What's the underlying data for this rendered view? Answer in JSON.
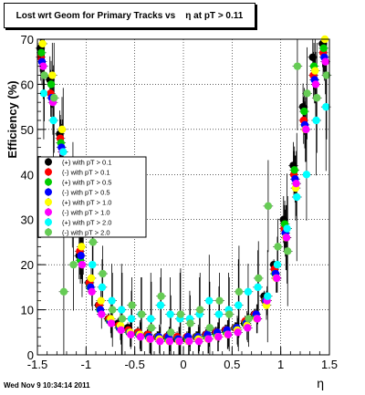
{
  "title": "Lost wrt Geom for Primary Tracks vs    η at pT > 0.11",
  "footer": "Wed Nov  9 10:34:14 2011",
  "colors": {
    "black": "#000000",
    "red": "#ff0000",
    "green": "#00cc00",
    "blue": "#0000ff",
    "yellow": "#ffff00",
    "magenta": "#ff00ff",
    "cyan": "#00ffff",
    "lightgreen": "#66cc55"
  },
  "chart_data": {
    "type": "scatter",
    "xlabel": "η",
    "ylabel": "Efficiency (%)",
    "xlim": [
      -1.5,
      1.5
    ],
    "ylim": [
      0,
      70
    ],
    "xticks": [
      "-1.5",
      "-1",
      "-0.5",
      "0",
      "0.5",
      "1",
      "1.5"
    ],
    "yticks": [
      "0",
      "10",
      "20",
      "30",
      "40",
      "50",
      "60",
      "70"
    ],
    "grid": true,
    "legend_position": "left-middle",
    "x": [
      -1.45,
      -1.35,
      -1.25,
      -1.15,
      -1.05,
      -0.95,
      -0.85,
      -0.75,
      -0.65,
      -0.55,
      -0.45,
      -0.35,
      -0.25,
      -0.15,
      -0.05,
      0.05,
      0.15,
      0.25,
      0.35,
      0.45,
      0.55,
      0.65,
      0.75,
      0.85,
      0.95,
      1.05,
      1.15,
      1.25,
      1.35,
      1.45
    ],
    "series": [
      {
        "name": "(+) with pT > 0.1",
        "color": "#000000",
        "values": [
          68,
          61,
          49,
          33,
          22,
          16,
          11,
          8,
          7,
          6,
          5,
          4.5,
          4,
          4,
          3.5,
          3.5,
          4,
          4.5,
          5,
          5.5,
          6,
          7,
          9,
          13,
          20,
          30,
          42,
          55,
          66,
          69
        ]
      },
      {
        "name": "(-) with pT > 0.1",
        "color": "#ff0000",
        "values": [
          66,
          58,
          48,
          34,
          23,
          16,
          11,
          8,
          6.5,
          5.5,
          5,
          4.5,
          4,
          4,
          4,
          4,
          4,
          4.5,
          5,
          5.5,
          6,
          7.5,
          9,
          12,
          19,
          28,
          40,
          52,
          62,
          67
        ]
      },
      {
        "name": "(+) with pT > 0.5",
        "color": "#00cc00",
        "values": [
          67,
          60,
          47,
          32,
          21,
          15,
          10,
          7.5,
          6,
          5,
          4.5,
          4,
          4,
          3.5,
          3.5,
          3.5,
          4,
          4,
          4.5,
          5,
          6,
          7,
          8.5,
          12,
          18,
          29,
          41,
          54,
          64,
          68
        ]
      },
      {
        "name": "(-) with pT > 0.5",
        "color": "#0000ff",
        "values": [
          65,
          57,
          46,
          33,
          22,
          15,
          10,
          7.5,
          6,
          5,
          4.5,
          4,
          4,
          4,
          3.5,
          4,
          4,
          4.5,
          5,
          5.5,
          6,
          7,
          9,
          12,
          18,
          27,
          39,
          51,
          61,
          66
        ]
      },
      {
        "name": "(+) with pT > 1.0",
        "color": "#ffff00",
        "values": [
          69,
          62,
          50,
          35,
          24,
          17,
          12,
          8,
          6.5,
          5,
          4.5,
          3.5,
          3.5,
          3,
          3,
          3,
          3.5,
          3.5,
          4,
          4.5,
          5.5,
          6.5,
          8,
          11,
          17,
          26,
          37,
          50,
          63,
          70
        ]
      },
      {
        "name": "(-) with pT > 1.0",
        "color": "#ff00ff",
        "values": [
          64,
          56,
          45,
          31,
          20,
          14,
          9,
          7,
          5.5,
          4.5,
          4,
          3.5,
          3,
          3,
          3,
          3,
          3,
          3.5,
          4,
          4.5,
          5,
          6,
          8,
          12,
          17,
          26,
          38,
          50,
          60,
          65
        ]
      },
      {
        "name": "(+) with pT > 2.0",
        "color": "#00ffff",
        "values": [
          58,
          52,
          45,
          37,
          28,
          20,
          15,
          12,
          10,
          8,
          9,
          8,
          11,
          9,
          8,
          8,
          9,
          12,
          9,
          10,
          11,
          14,
          15,
          13,
          20,
          28,
          35,
          40,
          52,
          55
        ]
      },
      {
        "name": "(-) with pT > 2.0",
        "color": "#66cc55",
        "values": [
          62,
          57,
          14,
          20,
          30,
          25,
          18,
          10,
          8,
          11,
          9,
          6,
          13,
          5,
          9,
          7,
          10,
          6,
          12,
          9,
          14,
          8,
          17,
          33,
          24,
          23,
          64,
          58,
          57,
          62
        ]
      }
    ]
  }
}
